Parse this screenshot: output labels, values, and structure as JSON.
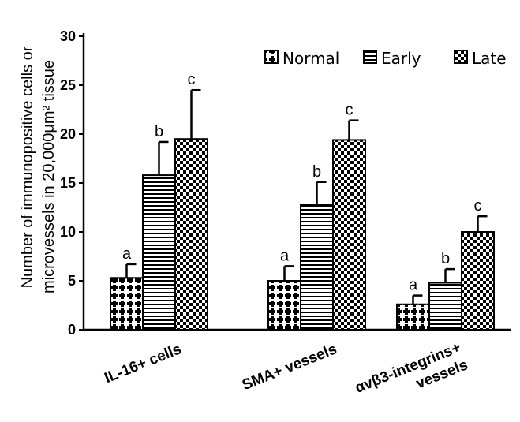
{
  "chart_data": {
    "type": "bar",
    "title": "",
    "xlabel": "",
    "ylabel_lines": [
      "Number of immunopositive cells or",
      "microvessels in 20,000μm² tissue"
    ],
    "ylim": [
      0,
      30
    ],
    "yticks": [
      "0",
      "5",
      "10",
      "15",
      "20",
      "25",
      "30"
    ],
    "grid": false,
    "legend_position": "top-right",
    "categories": [
      [
        "IL-16+ cells"
      ],
      [
        "SMA+ vessels"
      ],
      [
        "αvβ3-integrins+",
        "vessels"
      ]
    ],
    "series": [
      {
        "name": "Normal",
        "pattern": "dots",
        "values": [
          5.3,
          5.0,
          2.6
        ],
        "errors": [
          1.4,
          1.5,
          0.9
        ],
        "labels": [
          "a",
          "a",
          "a"
        ]
      },
      {
        "name": "Early",
        "pattern": "hlines",
        "values": [
          15.8,
          12.8,
          4.8
        ],
        "errors": [
          3.4,
          2.3,
          1.4
        ],
        "labels": [
          "b",
          "b",
          "b"
        ]
      },
      {
        "name": "Late",
        "pattern": "checks",
        "values": [
          19.5,
          19.4,
          10.0
        ],
        "errors": [
          5.0,
          2.0,
          1.6
        ],
        "labels": [
          "c",
          "c",
          "c"
        ]
      }
    ]
  }
}
